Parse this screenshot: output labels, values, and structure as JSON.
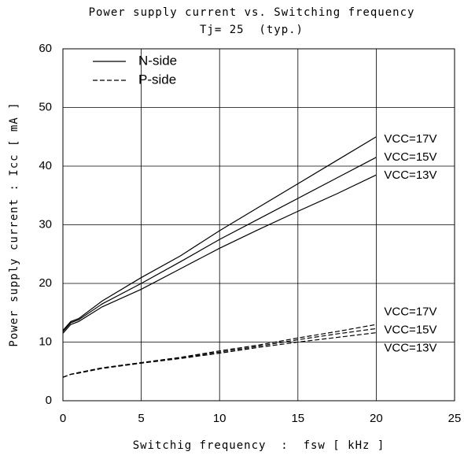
{
  "chart_data": {
    "type": "line",
    "title": "Power supply current vs. Switching frequency",
    "subtitle": "Tj= 25  (typ.)",
    "x_label": "Switchig frequency  :  fsw [ kHz ]",
    "y_label": "Power supply current : Icc [ mA ]",
    "x": [
      0,
      0.5,
      1,
      2.5,
      5,
      7.5,
      10,
      12.5,
      15,
      17.5,
      20
    ],
    "series": [
      {
        "name": "VCC=17V",
        "style": "solid",
        "color": "#000000",
        "values": [
          12,
          13.5,
          14,
          17,
          21,
          24.7,
          29,
          33,
          37,
          41,
          45
        ]
      },
      {
        "name": "VCC=15V",
        "style": "solid",
        "color": "#000000",
        "values": [
          11.8,
          13.3,
          13.8,
          16.5,
          20,
          23.7,
          27.5,
          31,
          34.5,
          38,
          41.5
        ]
      },
      {
        "name": "VCC=13V",
        "style": "solid",
        "color": "#000000",
        "values": [
          11.5,
          13,
          13.5,
          16,
          19,
          22.5,
          26,
          29.2,
          32.3,
          35.3,
          38.5
        ]
      },
      {
        "name": "VCC=17V",
        "style": "dashed",
        "color": "#000000",
        "values": [
          4,
          4.5,
          4.8,
          5.6,
          6.5,
          7.4,
          8.5,
          9.5,
          10.7,
          11.8,
          13
        ]
      },
      {
        "name": "VCC=15V",
        "style": "dashed",
        "color": "#000000",
        "values": [
          4,
          4.5,
          4.8,
          5.6,
          6.5,
          7.3,
          8.3,
          9.3,
          10.4,
          11.4,
          12.3
        ]
      },
      {
        "name": "VCC=13V",
        "style": "dashed",
        "color": "#000000",
        "values": [
          4,
          4.5,
          4.7,
          5.5,
          6.4,
          7.2,
          8.1,
          9.1,
          10,
          10.8,
          11.6
        ]
      }
    ],
    "legend": [
      {
        "name": "N-side",
        "style": "solid"
      },
      {
        "name": "P-side",
        "style": "dashed"
      }
    ],
    "xlim": [
      0,
      25
    ],
    "xticks": [
      0,
      5,
      10,
      15,
      20,
      25
    ],
    "ylim": [
      0,
      60
    ],
    "yticks": [
      0,
      10,
      20,
      30,
      40,
      50,
      60
    ],
    "grid": true
  }
}
